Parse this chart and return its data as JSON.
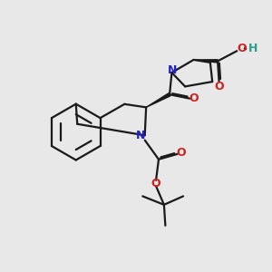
{
  "background_color": "#e8e8e8",
  "bond_color": "#1a1a1a",
  "N_color": "#2222cc",
  "O_color": "#cc2222",
  "H_color": "#2a9d8f",
  "line_width": 1.6,
  "xlim": [
    0,
    10
  ],
  "ylim": [
    0,
    10
  ]
}
